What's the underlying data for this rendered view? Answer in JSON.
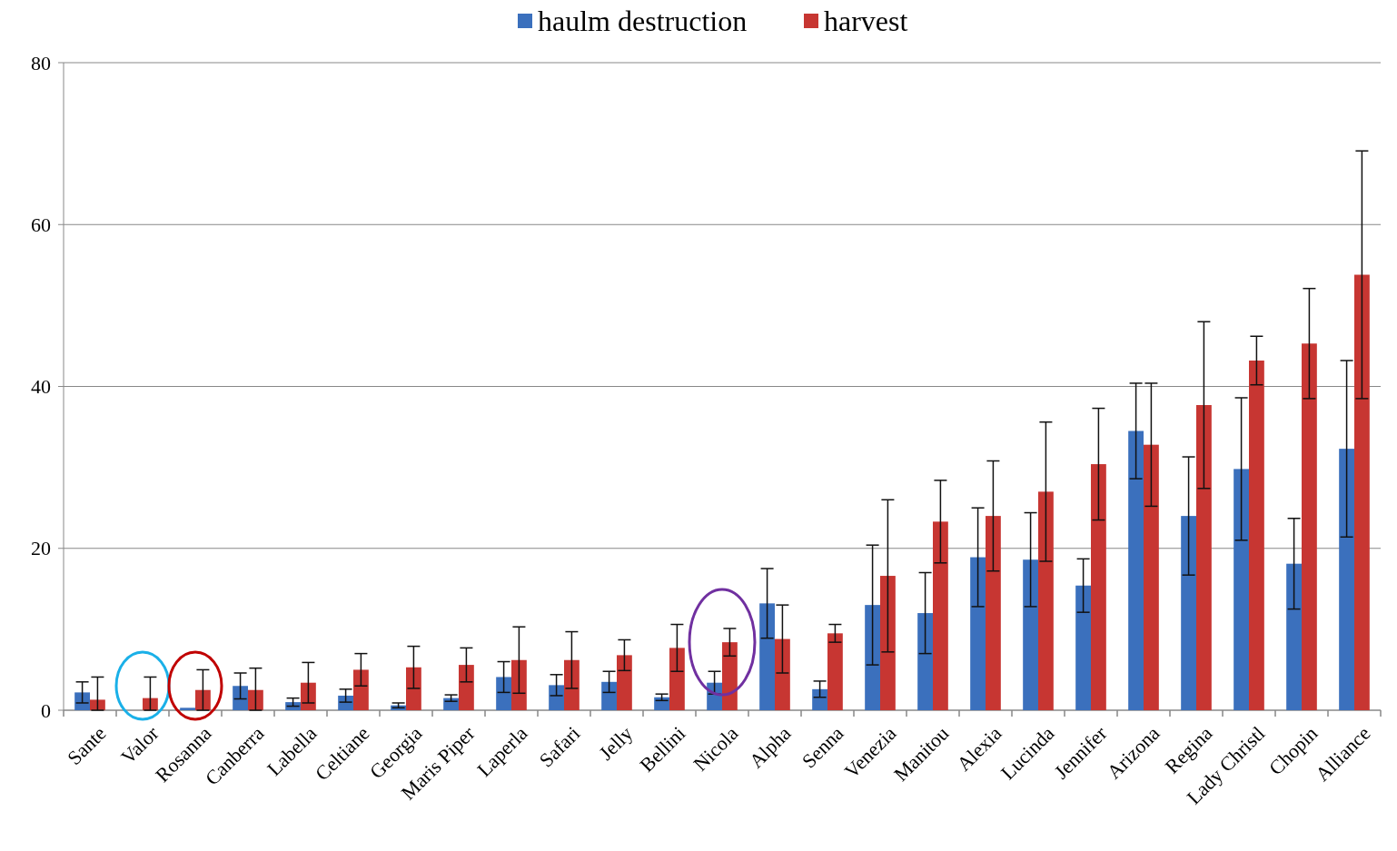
{
  "chart_data": {
    "type": "bar",
    "categories": [
      "Sante",
      "Valor",
      "Rosanna",
      "Canberra",
      "Labella",
      "Celtiane",
      "Georgia",
      "Maris Piper",
      "Laperla",
      "Safari",
      "Jelly",
      "Bellini",
      "Nicola",
      "Alpha",
      "Senna",
      "Venezia",
      "Manitou",
      "Alexia",
      "Lucinda",
      "Jennifer",
      "Arizona",
      "Regina",
      "Lady Christl",
      "Chopin",
      "Alliance"
    ],
    "series": [
      {
        "name": "haulm destruction",
        "color": "#3b70bd",
        "values": [
          2.2,
          0,
          0.3,
          3.0,
          1.0,
          1.8,
          0.6,
          1.5,
          4.1,
          3.1,
          3.5,
          1.6,
          3.4,
          13.2,
          2.6,
          13.0,
          12.0,
          18.9,
          18.6,
          15.4,
          34.5,
          24.0,
          29.8,
          18.1,
          32.3
        ],
        "errors": [
          1.3,
          null,
          null,
          1.6,
          0.5,
          0.8,
          0.3,
          0.4,
          1.9,
          1.3,
          1.3,
          0.4,
          1.4,
          4.3,
          1.0,
          7.4,
          5.0,
          6.1,
          5.8,
          3.3,
          5.9,
          7.3,
          8.8,
          5.6,
          10.9
        ]
      },
      {
        "name": "harvest",
        "color": "#c73632",
        "values": [
          1.3,
          1.5,
          2.5,
          2.5,
          3.4,
          5.0,
          5.3,
          5.6,
          6.2,
          6.2,
          6.8,
          7.7,
          8.4,
          8.8,
          9.5,
          16.6,
          23.3,
          24.0,
          27.0,
          30.4,
          32.8,
          37.7,
          43.2,
          45.3,
          53.8
        ],
        "errors": [
          [
            0,
            4.1
          ],
          [
            0,
            4.1
          ],
          2.5,
          [
            0,
            5.2
          ],
          2.5,
          2.0,
          2.6,
          2.1,
          4.1,
          3.5,
          1.9,
          2.9,
          1.7,
          4.2,
          1.1,
          9.4,
          5.1,
          6.8,
          8.6,
          6.9,
          7.6,
          10.3,
          3.0,
          6.8,
          15.3
        ]
      }
    ],
    "ylim": [
      0,
      80
    ],
    "yticks": [
      0,
      20,
      40,
      60,
      80
    ],
    "grid": "y",
    "legend": "top"
  }
}
